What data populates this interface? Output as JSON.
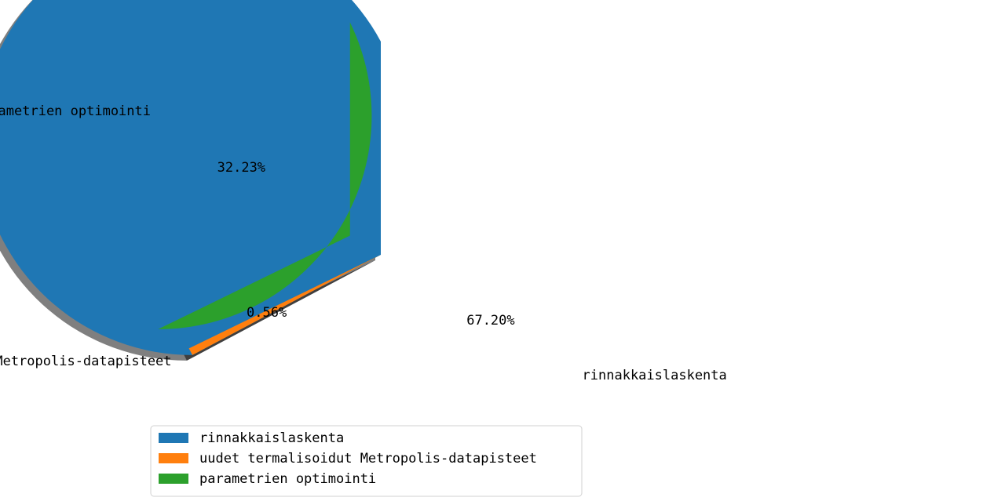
{
  "chart_data": {
    "type": "pie",
    "categories": [
      "rinnakkaislaskenta",
      "uudet termalisoidut Metropolis-datapisteet",
      "parametrien optimointi"
    ],
    "values": [
      67.2,
      0.56,
      32.23
    ],
    "percent_labels": [
      "67.20%",
      "0.56%",
      "32.23%"
    ],
    "colors": [
      "#1f77b4",
      "#ff7f0e",
      "#2ca02c"
    ],
    "exploded": [
      false,
      false,
      true
    ],
    "shadow": true,
    "legend": {
      "placement": "lower-center",
      "entries": [
        "rinnakkaislaskenta",
        "uudet termalisoidut Metropolis-datapisteet",
        "parametrien optimointi"
      ]
    }
  }
}
